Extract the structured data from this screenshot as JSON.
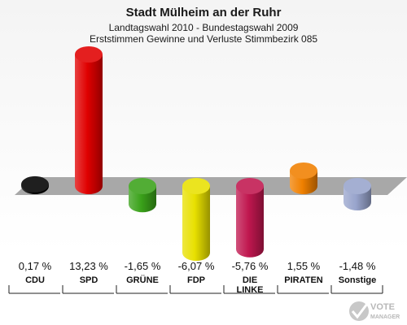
{
  "chart_data": {
    "type": "bar",
    "title": "Stadt Mülheim an der Ruhr",
    "subtitle_line1": "Landtagswahl 2010 - Bundestagswahl 2009",
    "subtitle_line2": "Erststimmen Gewinne und Verluste Stimmbezirk 085",
    "categories": [
      "CDU",
      "SPD",
      "GRÜNE",
      "FDP",
      "DIE LINKE",
      "PIRATEN",
      "Sonstige"
    ],
    "category_lines": [
      [
        "CDU"
      ],
      [
        "SPD"
      ],
      [
        "GRÜNE"
      ],
      [
        "FDP"
      ],
      [
        "DIE",
        "LINKE"
      ],
      [
        "PIRATEN"
      ],
      [
        "Sonstige"
      ]
    ],
    "values": [
      0.17,
      13.23,
      -1.65,
      -6.07,
      -5.76,
      1.55,
      -1.48
    ],
    "value_labels": [
      "0,17 %",
      "13,23 %",
      "-1,65 %",
      "-6,07 %",
      "-5,76 %",
      "1,55 %",
      "-1,48 %"
    ],
    "colors": [
      "#000000",
      "#e00000",
      "#3aa21a",
      "#e8e000",
      "#c0174f",
      "#f08000",
      "#98a4cc"
    ],
    "ylim": [
      -6.07,
      13.23
    ],
    "baseline_color": "#a8a8a8"
  },
  "logo": {
    "line1": "VOTE",
    "line2": "MANAGER"
  }
}
